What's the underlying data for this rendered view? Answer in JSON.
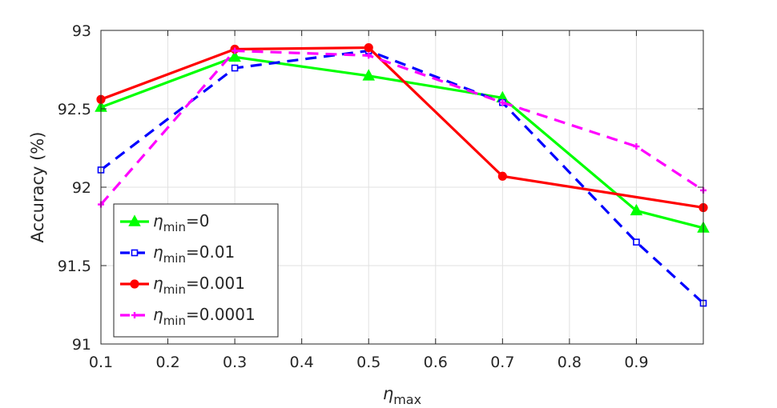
{
  "chart_data": {
    "type": "line",
    "title": "",
    "xlabel": "η",
    "xlabel_sub": "max",
    "ylabel": "Accuracy (%)",
    "xlim": [
      0.1,
      1.0
    ],
    "ylim": [
      91,
      93
    ],
    "xticks": [
      0.1,
      0.2,
      0.3,
      0.4,
      0.5,
      0.6,
      0.7,
      0.8,
      0.9
    ],
    "xtick_labels": [
      "0.1",
      "0.2",
      "0.3",
      "0.4",
      "0.5",
      "0.6",
      "0.7",
      "0.8",
      "0.9"
    ],
    "yticks": [
      91,
      91.5,
      92,
      92.5,
      93
    ],
    "ytick_labels": [
      "91",
      "91.5",
      "92",
      "92.5",
      "93"
    ],
    "grid": true,
    "legend_position": "bottom-left",
    "x": [
      0.1,
      0.3,
      0.5,
      0.7,
      0.9,
      1.0
    ],
    "series": [
      {
        "name": "η_min=0",
        "label_prefix": "η",
        "label_sub": "min",
        "label_suffix": "=0",
        "color": "#00ff00",
        "linestyle": "solid",
        "marker": "triangle",
        "values": [
          92.51,
          92.83,
          92.71,
          92.57,
          91.85,
          91.74
        ]
      },
      {
        "name": "η_min=0.01",
        "label_prefix": "η",
        "label_sub": "min",
        "label_suffix": "=0.01",
        "color": "#0000ff",
        "linestyle": "dashed",
        "marker": "square",
        "values": [
          92.11,
          92.76,
          92.87,
          92.54,
          91.65,
          91.26
        ]
      },
      {
        "name": "η_min=0.001",
        "label_prefix": "η",
        "label_sub": "min",
        "label_suffix": "=0.001",
        "color": "#ff0000",
        "linestyle": "solid",
        "marker": "circle",
        "values": [
          92.56,
          92.88,
          92.89,
          92.07,
          null,
          91.87
        ]
      },
      {
        "name": "η_min=0.0001",
        "label_prefix": "η",
        "label_sub": "min",
        "label_suffix": "=0.0001",
        "color": "#ff00ff",
        "linestyle": "dashed",
        "marker": "plus",
        "values": [
          91.89,
          92.87,
          92.84,
          92.54,
          92.26,
          91.98
        ]
      }
    ]
  }
}
